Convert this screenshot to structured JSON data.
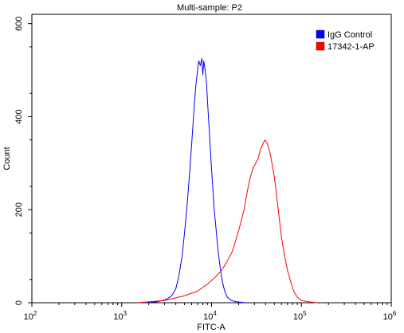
{
  "chart_data": {
    "type": "line",
    "title": "Multi-sample: P2",
    "xlabel": "FITC-A",
    "ylabel": "Count",
    "x_scale": "log",
    "xlim": [
      100,
      1000000
    ],
    "ylim": [
      0,
      620
    ],
    "x_ticks": [
      {
        "value": 100,
        "base": "10",
        "exp": "2"
      },
      {
        "value": 1000,
        "base": "10",
        "exp": "3"
      },
      {
        "value": 10000,
        "base": "10",
        "exp": "4"
      },
      {
        "value": 100000,
        "base": "10",
        "exp": "5"
      },
      {
        "value": 1000000,
        "base": "10",
        "exp": "6"
      }
    ],
    "y_ticks": [
      0,
      200,
      400,
      600
    ],
    "legend_position": "top-right",
    "series": [
      {
        "name": "IgG Control",
        "color": "#0000ff",
        "x": [
          1500,
          2500,
          3200,
          3600,
          4000,
          4300,
          4700,
          5000,
          5400,
          5800,
          6100,
          6400,
          6700,
          7000,
          7200,
          7500,
          7800,
          8000,
          8200,
          8500,
          8800,
          9100,
          9500,
          9900,
          10300,
          10700,
          11200,
          11700,
          12200,
          12800,
          13400,
          14000,
          15000,
          16500,
          19000,
          24000
        ],
        "y": [
          0,
          2,
          8,
          15,
          30,
          55,
          100,
          150,
          220,
          300,
          360,
          420,
          470,
          500,
          520,
          510,
          525,
          490,
          520,
          500,
          470,
          420,
          360,
          300,
          250,
          200,
          160,
          120,
          90,
          60,
          40,
          25,
          12,
          5,
          2,
          0
        ]
      },
      {
        "name": "17342-1-AP",
        "color": "#ff0000",
        "x": [
          1500,
          3000,
          5000,
          7000,
          9000,
          11000,
          13000,
          15000,
          17000,
          19000,
          21000,
          23000,
          25000,
          27000,
          29000,
          31000,
          33000,
          35000,
          37000,
          39000,
          41000,
          43000,
          45000,
          47000,
          50000,
          53000,
          56000,
          60000,
          65000,
          70000,
          76000,
          82000,
          90000,
          100000,
          120000,
          150000
        ],
        "y": [
          0,
          5,
          15,
          25,
          40,
          55,
          70,
          90,
          110,
          140,
          170,
          200,
          240,
          270,
          290,
          300,
          310,
          330,
          340,
          350,
          345,
          335,
          320,
          300,
          270,
          230,
          190,
          140,
          100,
          70,
          45,
          25,
          12,
          5,
          2,
          0
        ]
      }
    ]
  }
}
